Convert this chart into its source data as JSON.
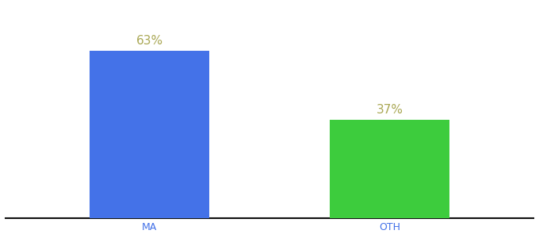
{
  "categories": [
    "MA",
    "OTH"
  ],
  "values": [
    63,
    37
  ],
  "bar_colors": [
    "#4472e8",
    "#3dcc3d"
  ],
  "label_texts": [
    "63%",
    "37%"
  ],
  "label_color": "#aaa855",
  "xlabel_color": "#4472e8",
  "background_color": "#ffffff",
  "bar_width": 0.5,
  "ylim": [
    0,
    80
  ],
  "figsize": [
    6.8,
    3.0
  ],
  "dpi": 100,
  "label_fontsize": 11,
  "xlabel_fontsize": 9,
  "spine_color": "#111111"
}
